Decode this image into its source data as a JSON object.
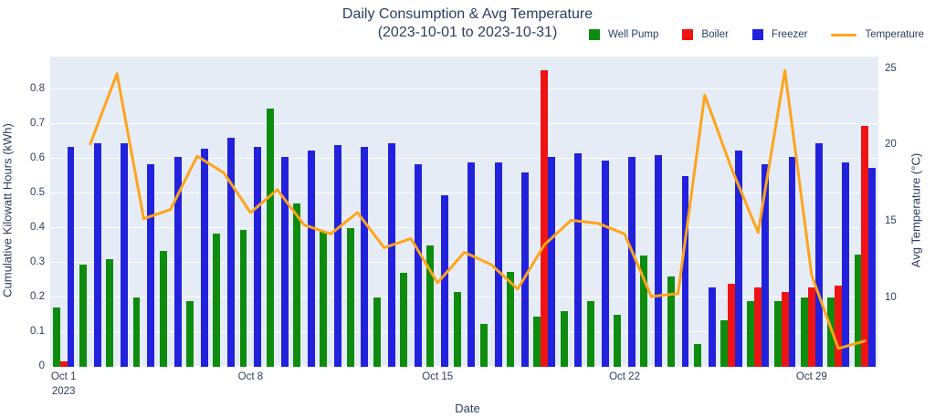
{
  "title": {
    "line1": "Daily Consumption & Avg Temperature",
    "line2": "(2023-10-01 to 2023-10-31)"
  },
  "legend": {
    "items": [
      {
        "label": "Well Pump",
        "color": "#0e8c0e",
        "marker": "square"
      },
      {
        "label": "Boiler",
        "color": "#ee1414",
        "marker": "square"
      },
      {
        "label": "Freezer",
        "color": "#2222dc",
        "marker": "square"
      },
      {
        "label": "Temperature",
        "color": "#ffa41b",
        "marker": "line"
      }
    ]
  },
  "axes": {
    "x": {
      "title": "Date",
      "ticks": [
        {
          "day_index": 0,
          "label": "Oct 1",
          "sublabel": "2023"
        },
        {
          "day_index": 7,
          "label": "Oct 8",
          "sublabel": ""
        },
        {
          "day_index": 14,
          "label": "Oct 15",
          "sublabel": ""
        },
        {
          "day_index": 21,
          "label": "Oct 22",
          "sublabel": ""
        },
        {
          "day_index": 28,
          "label": "Oct 29",
          "sublabel": ""
        }
      ]
    },
    "y_left": {
      "title": "Cumulative Kilowatt Hours (kWh)",
      "ticks": [
        {
          "label": "0",
          "value": 0.0
        },
        {
          "label": "0.1",
          "value": 0.1
        },
        {
          "label": "0.2",
          "value": 0.2
        },
        {
          "label": "0.3",
          "value": 0.3
        },
        {
          "label": "0.4",
          "value": 0.4
        },
        {
          "label": "0.5",
          "value": 0.5
        },
        {
          "label": "0.6",
          "value": 0.6
        },
        {
          "label": "0.7",
          "value": 0.7
        },
        {
          "label": "0.8",
          "value": 0.8
        }
      ]
    },
    "y_right": {
      "title": "Avg Temperature (°C)",
      "ticks": [
        {
          "label": "10",
          "value": 10
        },
        {
          "label": "15",
          "value": 15
        },
        {
          "label": "20",
          "value": 20
        },
        {
          "label": "25",
          "value": 25
        }
      ]
    }
  },
  "chart_data": {
    "type": "bar",
    "title": "Daily Consumption & Avg Temperature (2023-10-01 to 2023-10-31)",
    "xlabel": "Date",
    "ylabel_left": "Cumulative Kilowatt Hours (kWh)",
    "ylabel_right": "Avg Temperature (°C)",
    "ylim_left": [
      0,
      0.894
    ],
    "ylim_right": [
      5.5,
      25.82
    ],
    "grid": "horizontal-white",
    "legend_position": "top-right",
    "x": [
      "2023-10-01",
      "2023-10-02",
      "2023-10-03",
      "2023-10-04",
      "2023-10-05",
      "2023-10-06",
      "2023-10-07",
      "2023-10-08",
      "2023-10-09",
      "2023-10-10",
      "2023-10-11",
      "2023-10-12",
      "2023-10-13",
      "2023-10-14",
      "2023-10-15",
      "2023-10-16",
      "2023-10-17",
      "2023-10-18",
      "2023-10-19",
      "2023-10-20",
      "2023-10-21",
      "2023-10-22",
      "2023-10-23",
      "2023-10-24",
      "2023-10-25",
      "2023-10-26",
      "2023-10-27",
      "2023-10-28",
      "2023-10-29",
      "2023-10-30",
      "2023-10-31"
    ],
    "series": [
      {
        "name": "Well Pump",
        "type": "bar",
        "axis": "left",
        "color": "#0e8c0e",
        "values": [
          0.17,
          0.295,
          0.31,
          0.2,
          0.335,
          0.19,
          0.385,
          0.395,
          0.745,
          0.47,
          0.39,
          0.4,
          0.2,
          0.27,
          0.35,
          0.215,
          0.125,
          0.275,
          0.145,
          0.16,
          0.19,
          0.15,
          0.32,
          0.26,
          0.065,
          0.135,
          0.19,
          0.19,
          0.2,
          0.2,
          0.325
        ]
      },
      {
        "name": "Boiler",
        "type": "bar",
        "axis": "left",
        "color": "#ee1414",
        "values": [
          0.015,
          0,
          0,
          0,
          0,
          0,
          0,
          0,
          0,
          0,
          0,
          0,
          0,
          0,
          0,
          0,
          0,
          0,
          0.855,
          0,
          0,
          0,
          0,
          0,
          0,
          0.24,
          0.23,
          0.215,
          0.23,
          0.235,
          0.695
        ]
      },
      {
        "name": "Freezer",
        "type": "bar",
        "axis": "left",
        "color": "#2222dc",
        "values": [
          0.635,
          0.645,
          0.645,
          0.585,
          0.605,
          0.63,
          0.66,
          0.635,
          0.605,
          0.625,
          0.64,
          0.635,
          0.645,
          0.585,
          0.495,
          0.59,
          0.59,
          0.56,
          0.605,
          0.615,
          0.595,
          0.605,
          0.61,
          0.55,
          0.23,
          0.625,
          0.585,
          0.605,
          0.645,
          0.59,
          0.575
        ]
      },
      {
        "name": "Temperature",
        "type": "line",
        "axis": "right",
        "color": "#ffa41b",
        "values": [
          null,
          20.1,
          24.7,
          15.2,
          15.8,
          19.3,
          18.2,
          15.6,
          17.1,
          14.8,
          14.2,
          15.6,
          13.3,
          13.9,
          11.0,
          13.0,
          12.2,
          10.6,
          13.5,
          15.1,
          14.9,
          14.2,
          10.1,
          10.3,
          23.3,
          18.5,
          14.3,
          24.9,
          11.5,
          6.7,
          7.2
        ]
      }
    ]
  }
}
